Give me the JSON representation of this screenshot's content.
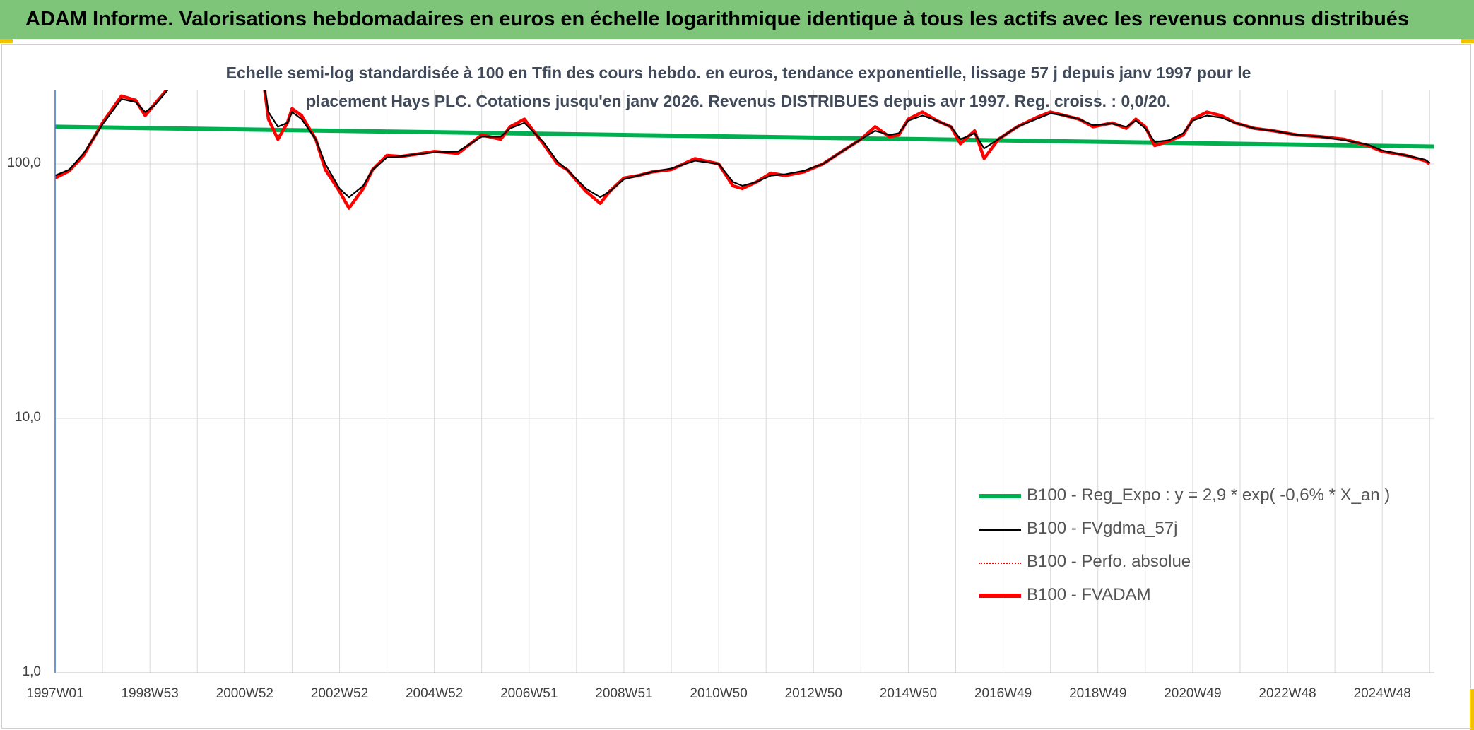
{
  "header": {
    "title": "ADAM Informe. Valorisations hebdomadaires en euros en échelle logarithmique identique à tous les actifs avec les revenus connus distribués"
  },
  "colors": {
    "banner": "#7ec57a",
    "accent": "#f2c200",
    "reg_expo": "#00b050",
    "fvgdma": "#000000",
    "perfo": "#ff0000",
    "fvadam": "#ff0000",
    "grid": "#d9d9d9",
    "axis": "#4472c4"
  },
  "chart_data": {
    "type": "line",
    "title_line1": "Echelle semi-log standardisée à 100 en Tfin des cours hebdo. en euros, tendance exponentielle, lissage 57 j depuis janv 1997 pour le",
    "title_line2": "placement Hays PLC. Cotations jusqu'en janv 2026. Revenus DISTRIBUES depuis avr 1997. Reg. croiss. : 0,0/20.",
    "y_scale": "log",
    "ylim": [
      1,
      200
    ],
    "y_ticks": [
      "1,0",
      "10,0",
      "100,0"
    ],
    "xlim": [
      1997.0,
      2026.1
    ],
    "x_tick_labels": [
      "1997W01",
      "1998W53",
      "2000W52",
      "2002W52",
      "2004W52",
      "2006W51",
      "2008W51",
      "2010W50",
      "2012W50",
      "2014W50",
      "2016W49",
      "2018W49",
      "2020W49",
      "2022W48",
      "2024W48"
    ],
    "x_tick_years": [
      1997.0,
      1999.0,
      2001.0,
      2003.0,
      2005.0,
      2007.0,
      2009.0,
      2011.0,
      2013.0,
      2015.0,
      2017.0,
      2019.0,
      2021.0,
      2023.0,
      2025.0
    ],
    "grid": true,
    "legend_position": "right",
    "legend": [
      {
        "label": "B100 - Reg_Expo : y = 2,9 * exp( -0,6% *  X_an )",
        "style": "green-thick"
      },
      {
        "label": "B100 - FVgdma_57j",
        "style": "black-solid"
      },
      {
        "label": "B100 - Perfo. absolue",
        "style": "red-dotted"
      },
      {
        "label": "B100 - FVADAM",
        "style": "red-thick"
      }
    ],
    "series": [
      {
        "name": "B100 - Reg_Expo : y = 2,9 * exp( -0,6% *  X_an )",
        "x": [
          1997.0,
          2026.1
        ],
        "y": [
          140,
          117
        ]
      },
      {
        "name": "B100 - FVADAM",
        "x": [
          1997.0,
          1997.3,
          1997.6,
          1998.0,
          1998.4,
          1998.7,
          1998.9,
          1999.1,
          1999.4,
          1999.6,
          1999.7,
          1999.75,
          1999.76,
          2001.4,
          2001.5,
          2001.7,
          2001.9,
          2002.0,
          2002.2,
          2002.5,
          2002.7,
          2003.0,
          2003.2,
          2003.5,
          2003.7,
          2004.0,
          2004.3,
          2004.6,
          2005.0,
          2005.5,
          2006.0,
          2006.4,
          2006.6,
          2006.9,
          2007.3,
          2007.6,
          2007.8,
          2008.2,
          2008.5,
          2008.7,
          2009.0,
          2009.3,
          2009.6,
          2010.0,
          2010.5,
          2011.0,
          2011.3,
          2011.5,
          2011.8,
          2012.1,
          2012.4,
          2012.8,
          2013.2,
          2013.6,
          2014.0,
          2014.3,
          2014.6,
          2014.8,
          2015.0,
          2015.3,
          2015.6,
          2015.9,
          2016.1,
          2016.4,
          2016.6,
          2016.9,
          2017.3,
          2017.7,
          2018.0,
          2018.3,
          2018.6,
          2018.9,
          2019.3,
          2019.6,
          2019.8,
          2020.0,
          2020.2,
          2020.5,
          2020.8,
          2021.0,
          2021.3,
          2021.6,
          2021.9,
          2022.3,
          2022.7,
          2023.2,
          2023.7,
          2024.2,
          2024.7,
          2025.0,
          2025.5,
          2025.9,
          2026.0
        ],
        "y": [
          88,
          94,
          108,
          145,
          185,
          178,
          155,
          172,
          200,
          205,
          210,
          210,
          null,
          210,
          150,
          125,
          145,
          165,
          155,
          125,
          95,
          78,
          67,
          80,
          95,
          108,
          107,
          109,
          112,
          110,
          130,
          125,
          140,
          150,
          120,
          100,
          95,
          78,
          70,
          78,
          88,
          90,
          93,
          95,
          105,
          100,
          82,
          80,
          85,
          92,
          90,
          93,
          100,
          112,
          125,
          140,
          128,
          130,
          150,
          160,
          148,
          140,
          120,
          135,
          105,
          125,
          140,
          152,
          160,
          155,
          150,
          140,
          145,
          138,
          150,
          140,
          118,
          123,
          130,
          150,
          160,
          155,
          145,
          138,
          135,
          130,
          128,
          125,
          118,
          112,
          108,
          103,
          100
        ]
      },
      {
        "name": "B100 - FVgdma_57j",
        "x": [
          1997.0,
          1997.3,
          1997.6,
          1998.0,
          1998.4,
          1998.7,
          1998.9,
          1999.1,
          1999.4,
          1999.6,
          1999.7,
          1999.75,
          1999.76,
          2001.4,
          2001.5,
          2001.7,
          2001.9,
          2002.0,
          2002.2,
          2002.5,
          2002.7,
          2003.0,
          2003.2,
          2003.5,
          2003.7,
          2004.0,
          2004.3,
          2004.6,
          2005.0,
          2005.5,
          2006.0,
          2006.4,
          2006.6,
          2006.9,
          2007.3,
          2007.6,
          2007.8,
          2008.2,
          2008.5,
          2008.7,
          2009.0,
          2009.3,
          2009.6,
          2010.0,
          2010.5,
          2011.0,
          2011.3,
          2011.5,
          2011.8,
          2012.1,
          2012.4,
          2012.8,
          2013.2,
          2013.6,
          2014.0,
          2014.3,
          2014.6,
          2014.8,
          2015.0,
          2015.3,
          2015.6,
          2015.9,
          2016.1,
          2016.4,
          2016.6,
          2016.9,
          2017.3,
          2017.7,
          2018.0,
          2018.3,
          2018.6,
          2018.9,
          2019.3,
          2019.6,
          2019.8,
          2020.0,
          2020.2,
          2020.5,
          2020.8,
          2021.0,
          2021.3,
          2021.6,
          2021.9,
          2022.3,
          2022.7,
          2023.2,
          2023.7,
          2024.2,
          2024.7,
          2025.0,
          2025.5,
          2025.9,
          2026.0
        ],
        "y": [
          90,
          95,
          110,
          143,
          180,
          175,
          160,
          170,
          198,
          205,
          210,
          210,
          null,
          210,
          160,
          140,
          145,
          160,
          150,
          125,
          100,
          80,
          74,
          82,
          95,
          106,
          107,
          109,
          111,
          112,
          128,
          128,
          138,
          145,
          122,
          102,
          95,
          80,
          74,
          78,
          87,
          90,
          93,
          96,
          103,
          100,
          85,
          82,
          85,
          90,
          91,
          94,
          100,
          112,
          125,
          135,
          130,
          132,
          148,
          155,
          148,
          140,
          125,
          132,
          115,
          125,
          140,
          150,
          158,
          155,
          150,
          142,
          144,
          140,
          148,
          138,
          122,
          124,
          132,
          148,
          155,
          152,
          145,
          138,
          135,
          130,
          128,
          124,
          119,
          113,
          108,
          104,
          101
        ]
      }
    ]
  }
}
